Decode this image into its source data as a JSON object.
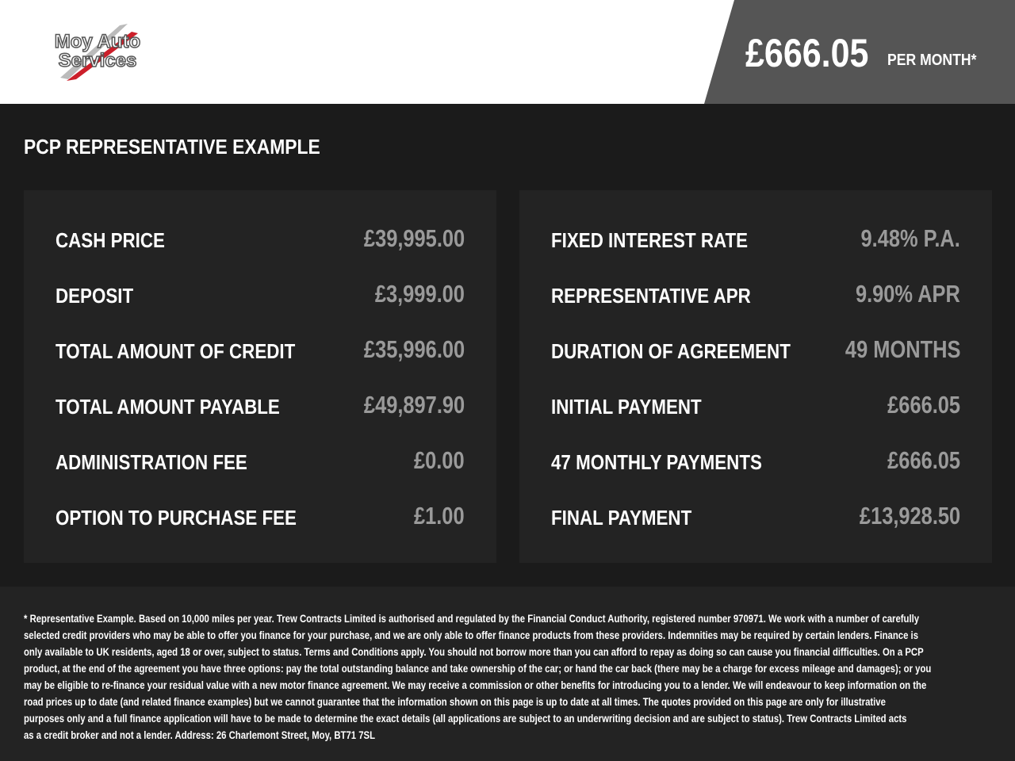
{
  "header": {
    "logo_text": "Moy Auto Services",
    "monthly_price": "£666.05",
    "per_month_label": "PER MONTH*"
  },
  "title": "PCP REPRESENTATIVE EXAMPLE",
  "left_panel": [
    {
      "label": "CASH PRICE",
      "value": "£39,995.00"
    },
    {
      "label": "DEPOSIT",
      "value": "£3,999.00"
    },
    {
      "label": "TOTAL AMOUNT OF CREDIT",
      "value": "£35,996.00"
    },
    {
      "label": "TOTAL AMOUNT PAYABLE",
      "value": "£49,897.90"
    },
    {
      "label": "ADMINISTRATION FEE",
      "value": "£0.00"
    },
    {
      "label": "OPTION TO PURCHASE FEE",
      "value": "£1.00"
    }
  ],
  "right_panel": [
    {
      "label": "FIXED INTEREST RATE",
      "value": "9.48% P.A."
    },
    {
      "label": "REPRESENTATIVE APR",
      "value": "9.90% APR"
    },
    {
      "label": "DURATION OF AGREEMENT",
      "value": "49 MONTHS"
    },
    {
      "label": "INITIAL PAYMENT",
      "value": "£666.05"
    },
    {
      "label": "47 MONTHLY PAYMENTS",
      "value": "£666.05"
    },
    {
      "label": "FINAL PAYMENT",
      "value": "£13,928.50"
    }
  ],
  "disclaimer_lines": [
    "* Representative Example. Based on 10,000 miles per year. Trew Contracts Limited is authorised and regulated by the Financial Conduct Authority, registered number 970971. We work with a number of carefully",
    "selected credit providers who may be able to offer you finance for your purchase, and we are only able to offer finance products from these providers. Indemnities may be required by certain lenders. Finance is",
    "only available to UK residents, aged 18 or over, subject to status. Terms and Conditions apply. You should not borrow more than you can afford to repay as doing so can cause you financial difficulties. On a PCP",
    "product, at the end of the agreement you have three options: pay the total outstanding balance and take ownership of the car; or hand the car back (there may be a charge for excess mileage and damages); or you",
    "may be eligible to re-finance your residual value with a new motor finance agreement. We may receive a commission or other benefits for introducing you to a lender. We will endeavour to keep information on the",
    "road prices up to date (and related finance examples) but we cannot guarantee that the information shown on this page is up to date at all times. The quotes provided on this page are only for illustrative",
    "purposes only and a full finance application will have to be made to determine the exact details (all applications are subject to an underwriting decision and are subject to status). Trew Contracts Limited acts",
    "as a credit broker and not a lender. Address: 26 Charlemont Street, Moy, BT71 7SL"
  ],
  "colors": {
    "price_box": "#555555",
    "background": "#1b1b1b",
    "panel": "#232323",
    "value_text": "#9a9a9a",
    "logo_red": "#cc1f2a"
  }
}
